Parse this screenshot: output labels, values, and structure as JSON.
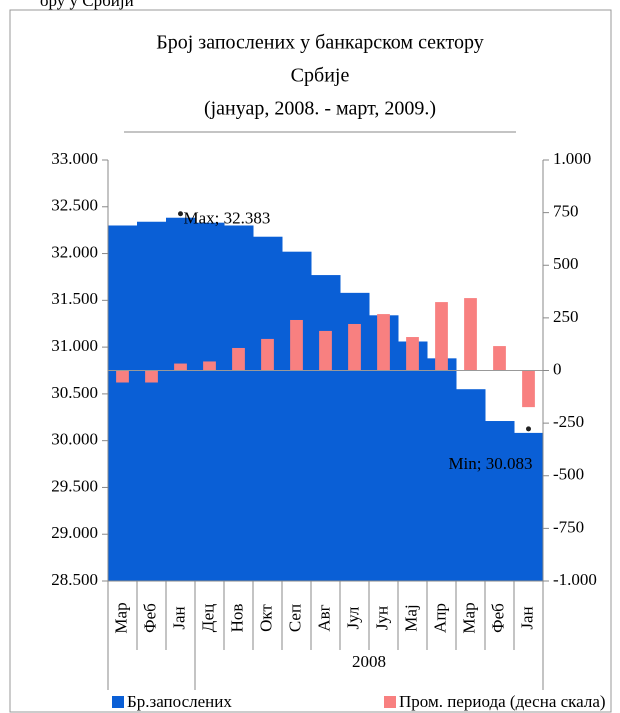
{
  "header_fragment": "ору у Србији",
  "chart_data": {
    "type": "bar-area-combo",
    "title": [
      "Број запослених у банкарском сектору",
      "Србије",
      "(јануар, 2008. - март, 2009.)"
    ],
    "categories": [
      "Мар",
      "Феб",
      "Јан",
      "Дец",
      "Нов",
      "Окт",
      "Сеп",
      "Авг",
      "Јул",
      "Јун",
      "Мај",
      "Апр",
      "Мар",
      "Феб",
      "Јан"
    ],
    "category_groups": [
      {
        "label": null,
        "count": 3
      },
      {
        "label": "2008",
        "count": 12
      }
    ],
    "series": [
      {
        "name": "Бр.запослених",
        "color": "#0a5fd6",
        "axis": "y",
        "values": [
          32300,
          32340,
          32383,
          32330,
          32300,
          32180,
          32020,
          31770,
          31580,
          31340,
          31060,
          30880,
          30550,
          30210,
          30083
        ]
      },
      {
        "name": "Пром. периода (десна скала)",
        "color": "#f88080",
        "axis": "y2",
        "values": [
          -57,
          -57,
          33,
          43,
          107,
          150,
          240,
          188,
          221,
          268,
          159,
          325,
          344,
          116,
          -174
        ]
      }
    ],
    "annotations": [
      {
        "text": "Max; 32.383",
        "index": 2
      },
      {
        "text": "Min; 30.083",
        "index": 14
      }
    ],
    "ylim": [
      28500,
      33000
    ],
    "yticks": [
      {
        "value": 28500,
        "label": "28.500"
      },
      {
        "value": 29000,
        "label": "29.000"
      },
      {
        "value": 29500,
        "label": "29.500"
      },
      {
        "value": 30000,
        "label": "30.000"
      },
      {
        "value": 30500,
        "label": "30.500"
      },
      {
        "value": 31000,
        "label": "31.000"
      },
      {
        "value": 31500,
        "label": "31.500"
      },
      {
        "value": 32000,
        "label": "32.000"
      },
      {
        "value": 32500,
        "label": "32.500"
      },
      {
        "value": 33000,
        "label": "33.000"
      }
    ],
    "y2lim": [
      -1000,
      1000
    ],
    "y2ticks": [
      {
        "value": -1000,
        "label": "-1.000"
      },
      -750,
      -500,
      -250,
      0,
      250,
      500,
      750,
      {
        "value": 1000,
        "label": "1.000"
      }
    ],
    "legend": "bottom"
  }
}
